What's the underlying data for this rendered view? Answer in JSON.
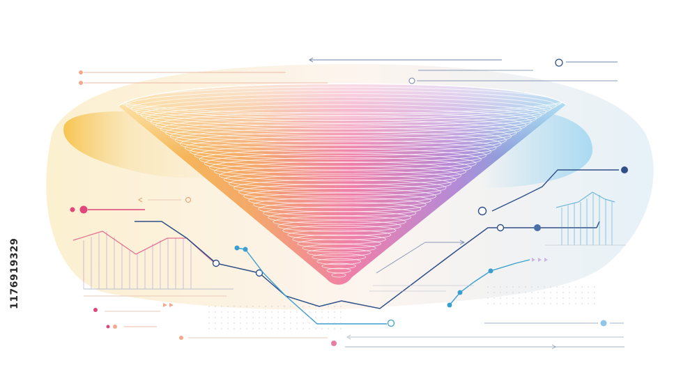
{
  "illustration": {
    "subject": "funnel-with-line-charts",
    "palette": {
      "yellow": "#f7c24a",
      "orange": "#f4a86a",
      "pink": "#ef7fa9",
      "purple": "#b58ad6",
      "blue": "#5bb8e3",
      "navy": "#2f4f86",
      "teal": "#3a9fcf",
      "magenta": "#e0457b",
      "peach": "#f4a98f",
      "grey": "#b9bfcf"
    }
  },
  "watermark": {
    "stock_id": "1176919329"
  }
}
